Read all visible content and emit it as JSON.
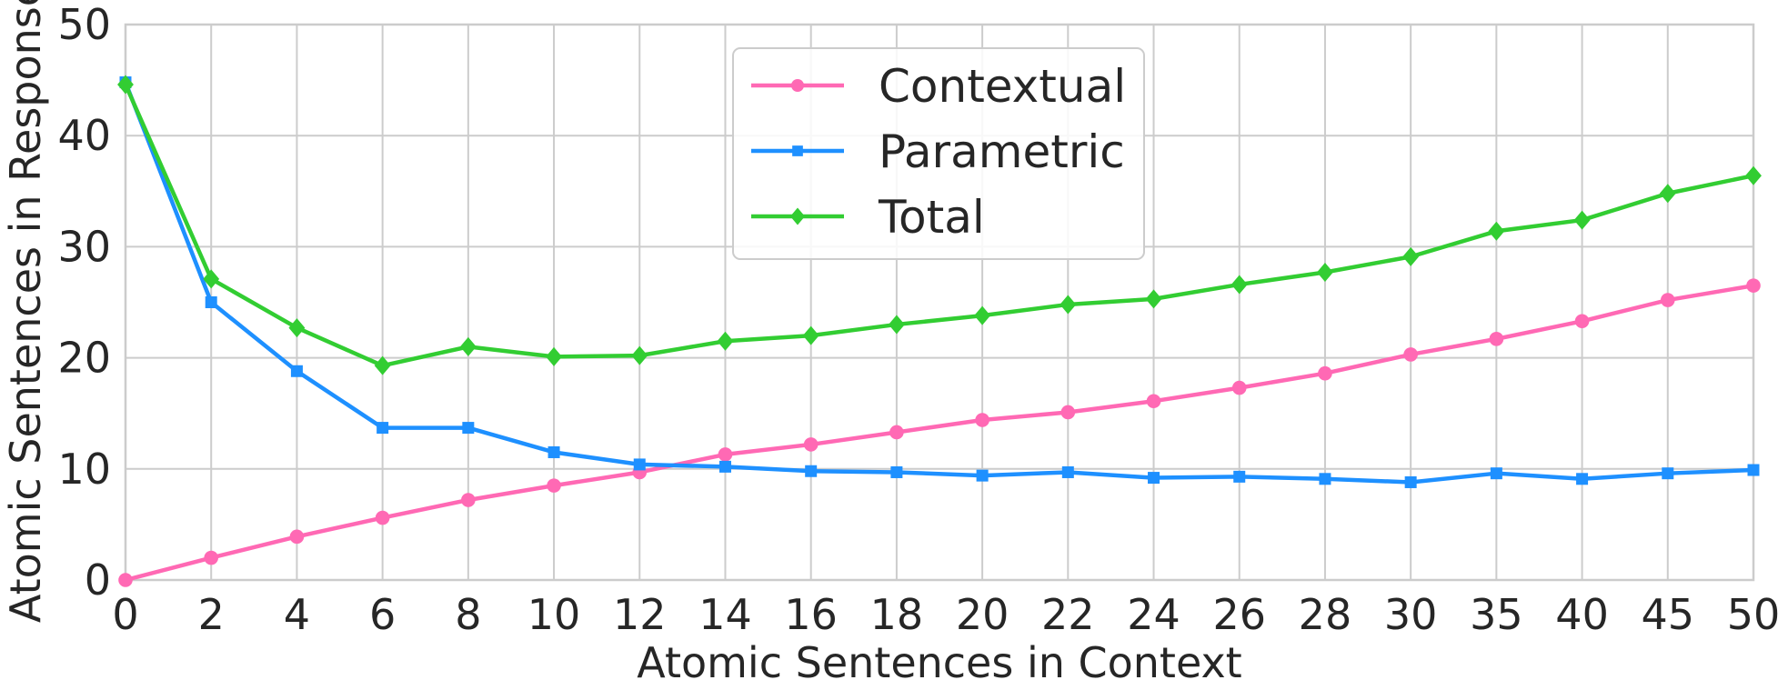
{
  "chart_data": {
    "type": "line",
    "title": "",
    "xlabel": "Atomic Sentences in Context",
    "ylabel": "Atomic Sentences in Response",
    "categories": [
      "0",
      "2",
      "4",
      "6",
      "8",
      "10",
      "12",
      "14",
      "16",
      "18",
      "20",
      "22",
      "24",
      "26",
      "28",
      "30",
      "35",
      "40",
      "45",
      "50"
    ],
    "ylim": [
      0,
      50
    ],
    "yticks": [
      "0",
      "10",
      "20",
      "30",
      "40",
      "50"
    ],
    "grid": true,
    "legend_position": "top-center",
    "series": [
      {
        "name": "Contextual",
        "color": "#ff69b4",
        "marker": "circle",
        "values": [
          0.0,
          2.0,
          3.9,
          5.6,
          7.2,
          8.5,
          9.7,
          11.3,
          12.2,
          13.3,
          14.4,
          15.1,
          16.1,
          17.3,
          18.6,
          20.3,
          21.7,
          23.3,
          25.2,
          26.5
        ]
      },
      {
        "name": "Parametric",
        "color": "#1e90ff",
        "marker": "square",
        "values": [
          44.8,
          25.0,
          18.8,
          13.7,
          13.7,
          11.5,
          10.4,
          10.2,
          9.8,
          9.7,
          9.4,
          9.7,
          9.2,
          9.3,
          9.1,
          8.8,
          9.6,
          9.1,
          9.6,
          9.9
        ]
      },
      {
        "name": "Total",
        "color": "#32cd32",
        "marker": "diamond",
        "values": [
          44.6,
          27.1,
          22.7,
          19.3,
          21.0,
          20.1,
          20.2,
          21.5,
          22.0,
          23.0,
          23.8,
          24.8,
          25.3,
          26.6,
          27.7,
          29.1,
          31.4,
          32.4,
          34.8,
          36.4
        ]
      }
    ]
  }
}
